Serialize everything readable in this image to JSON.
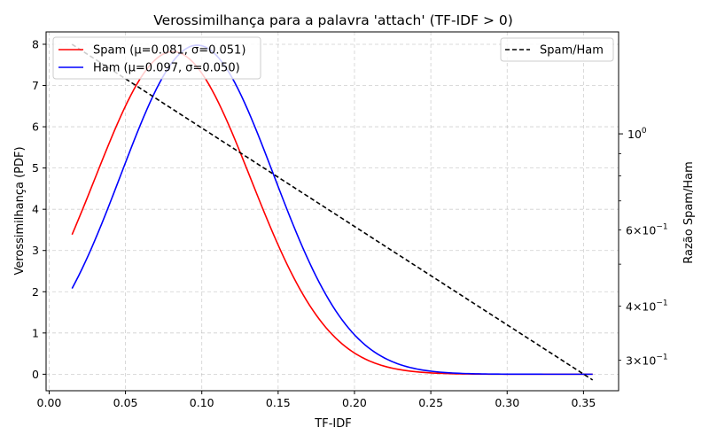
{
  "chart_data": {
    "type": "line",
    "title": "Verossimilhança para a palavra 'attach' (TF-IDF > 0)",
    "xlabel": "TF-IDF",
    "ylabel": "Verossimilhança (PDF)",
    "y2label": "Razão Spam/Ham",
    "xlim": [
      -0.002,
      0.373
    ],
    "ylim": [
      -0.4,
      8.3
    ],
    "y2lim": [
      0.255,
      1.72
    ],
    "y2scale": "log",
    "grid": true,
    "x_ticks": [
      "0.00",
      "0.05",
      "0.10",
      "0.15",
      "0.20",
      "0.25",
      "0.30",
      "0.35"
    ],
    "x_tick_values": [
      0,
      0.05,
      0.1,
      0.15,
      0.2,
      0.25,
      0.3,
      0.35
    ],
    "y_ticks": [
      "0",
      "1",
      "2",
      "3",
      "4",
      "5",
      "6",
      "7",
      "8"
    ],
    "y_tick_values": [
      0,
      1,
      2,
      3,
      4,
      5,
      6,
      7,
      8
    ],
    "y2_major_ticks": [
      {
        "value": 1.0,
        "label": "10^0"
      }
    ],
    "y2_minor_ticks": [
      {
        "value": 0.3,
        "label": "3×10^-1"
      },
      {
        "value": 0.4,
        "label": "4×10^-1"
      },
      {
        "value": 0.5,
        "label": ""
      },
      {
        "value": 0.6,
        "label": "6×10^-1"
      },
      {
        "value": 0.7,
        "label": ""
      },
      {
        "value": 0.8,
        "label": ""
      },
      {
        "value": 0.9,
        "label": ""
      }
    ],
    "x_range": [
      0.015,
      0.356
    ],
    "series": [
      {
        "name": "Spam (μ=0.081, σ=0.051)",
        "color": "#ff0000",
        "axis": "left",
        "mu": 0.081,
        "sigma": 0.051,
        "style": "solid"
      },
      {
        "name": "Ham (μ=0.097, σ=0.050)",
        "color": "#0000ff",
        "axis": "left",
        "mu": 0.097,
        "sigma": 0.05,
        "style": "solid"
      },
      {
        "name": "Spam/Ham",
        "color": "#000000",
        "axis": "right",
        "x": [
          0.015,
          0.356
        ],
        "y": [
          1.61,
          0.27
        ],
        "style": "dashed"
      }
    ],
    "legend_left": "upper-left",
    "legend_right": "upper-right"
  }
}
